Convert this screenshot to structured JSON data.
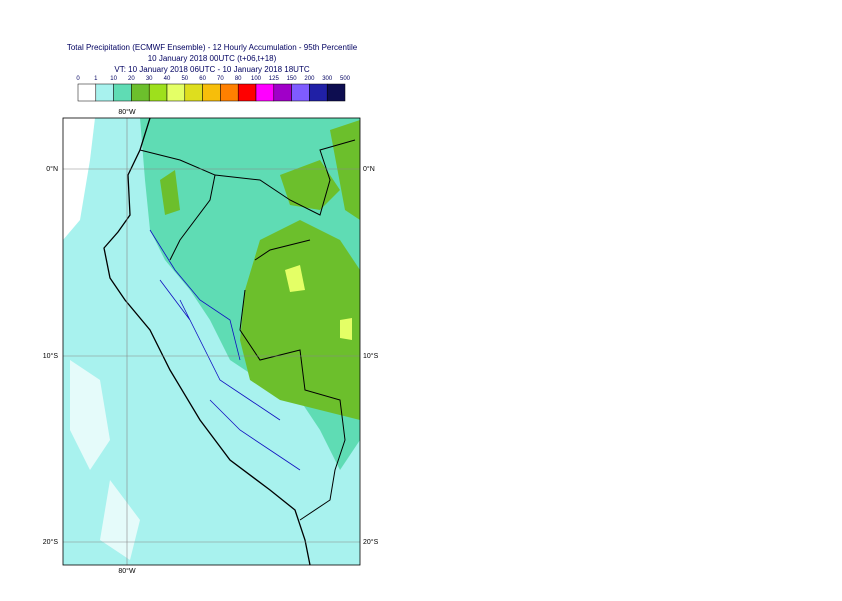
{
  "title": {
    "lines": [
      "Total Precipitation (ECMWF Ensemble) - 12 Hourly Accumulation - 95th Percentile",
      "10 January 2018 00UTC (t+06,t+18)",
      "VT: 10 January 2018 06UTC - 10 January 2018 18UTC"
    ]
  },
  "legend": {
    "labels": [
      "0",
      "1",
      "10",
      "20",
      "30",
      "40",
      "50",
      "60",
      "70",
      "80",
      "100",
      "125",
      "150",
      "200",
      "300",
      "500"
    ],
    "colors": [
      "#ffffff",
      "#a8f2ee",
      "#5fdcb4",
      "#6cbf2c",
      "#9ee01c",
      "#e4ff66",
      "#dede1e",
      "#f7be0a",
      "#ff8000",
      "#ff0000",
      "#ff00ff",
      "#a000c8",
      "#7f5cff",
      "#2020a6",
      "#0d0d50"
    ]
  },
  "axes": {
    "lon_top": "80°W",
    "lon_bottom": "80°W",
    "lat_left": [
      "0°N",
      "10°S",
      "20°S"
    ],
    "lat_right": [
      "0°N",
      "10°S",
      "20°S"
    ]
  }
}
